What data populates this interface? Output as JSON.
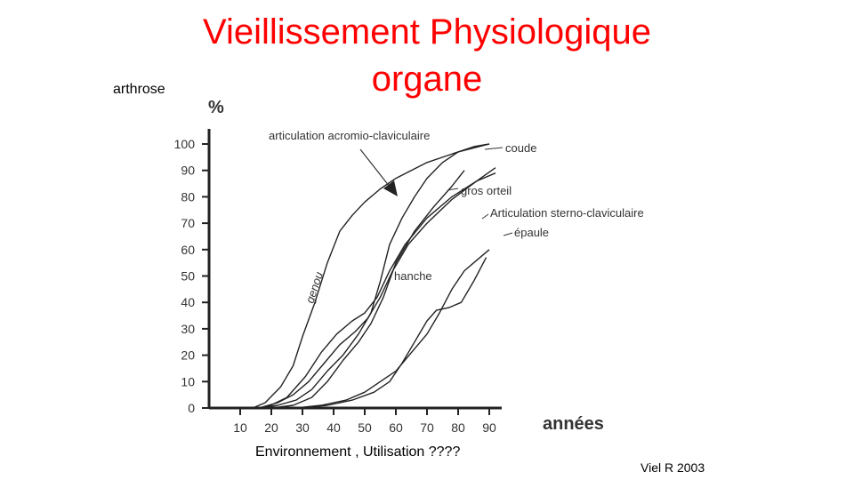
{
  "slide": {
    "title_line1": "Vieillissement Physiologique",
    "title_line2": "organe",
    "left_label": "arthrose",
    "footer_label": "Environnement , Utilisation ????",
    "credit": "Viel R 2003",
    "title_color": "#ff0000"
  },
  "chart_data": {
    "type": "line",
    "ylabel": "%",
    "xlabel": "années",
    "ylim": [
      0,
      100
    ],
    "xlim": [
      0,
      95
    ],
    "x_ticks": [
      10,
      20,
      30,
      40,
      50,
      60,
      70,
      80,
      90
    ],
    "y_ticks": [
      0,
      10,
      20,
      30,
      40,
      50,
      60,
      70,
      80,
      90,
      100
    ],
    "line_color": "#222222",
    "series": [
      {
        "name": "genou",
        "x": [
          14,
          18,
          23,
          27,
          30,
          34,
          38,
          42,
          46,
          50,
          55,
          60,
          70,
          80,
          90
        ],
        "y": [
          0,
          2,
          8,
          16,
          27,
          40,
          55,
          67,
          73,
          78,
          83,
          87,
          93,
          97,
          100
        ]
      },
      {
        "name": "coude",
        "x": [
          16,
          22,
          28,
          33,
          38,
          43,
          48,
          52,
          55,
          58,
          62,
          66,
          70,
          75,
          80,
          85,
          90
        ],
        "y": [
          0,
          1,
          3,
          7,
          14,
          20,
          28,
          36,
          48,
          62,
          72,
          80,
          87,
          93,
          97,
          99,
          100
        ]
      },
      {
        "name": "articulation acromio-claviculaire",
        "x": [
          20,
          27,
          33,
          38,
          43,
          48,
          52,
          56,
          60,
          66,
          72,
          78,
          82
        ],
        "y": [
          0,
          1,
          4,
          10,
          18,
          25,
          32,
          42,
          55,
          67,
          76,
          84,
          90
        ]
      },
      {
        "name": "gros orteil",
        "x": [
          18,
          25,
          31,
          36,
          41,
          46,
          50,
          54,
          58,
          63,
          70,
          78,
          86,
          92
        ],
        "y": [
          0,
          4,
          12,
          21,
          28,
          33,
          36,
          42,
          52,
          62,
          72,
          80,
          86,
          89
        ]
      },
      {
        "name": "hanche",
        "x": [
          16,
          22,
          27,
          32,
          37,
          42,
          47,
          51,
          55,
          59,
          64,
          70,
          78,
          86,
          92
        ],
        "y": [
          0,
          2,
          5,
          10,
          17,
          24,
          29,
          34,
          42,
          52,
          62,
          70,
          79,
          86,
          91
        ]
      },
      {
        "name": "Articulation sterno-claviculaire",
        "x": [
          28,
          36,
          44,
          50,
          55,
          60,
          65,
          70,
          74,
          78,
          82,
          86,
          90
        ],
        "y": [
          0,
          1,
          3,
          6,
          10,
          14,
          21,
          28,
          36,
          45,
          52,
          56,
          60
        ]
      },
      {
        "name": "épaule",
        "x": [
          28,
          38,
          46,
          53,
          58,
          62,
          66,
          70,
          73,
          77,
          81,
          85,
          89
        ],
        "y": [
          0,
          1,
          3,
          6,
          10,
          17,
          25,
          33,
          37,
          38,
          40,
          48,
          57
        ]
      }
    ],
    "annotations": [
      "articulation acromio-claviculaire",
      "coude",
      "gros orteil",
      "Articulation sterno-claviculaire",
      "épaule",
      "hanche",
      "genou"
    ]
  }
}
